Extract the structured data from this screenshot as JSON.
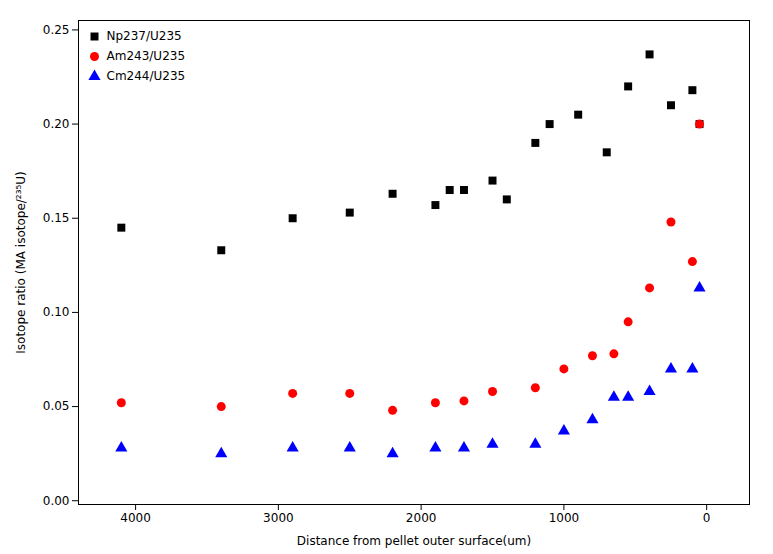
{
  "chart_data": {
    "type": "scatter",
    "xlabel": "Distance from pellet outer surface(um)",
    "ylabel": "Isotope ratio (MA isotope/²³⁵U)",
    "xlim": [
      4400,
      -300
    ],
    "ylim": [
      -0.002,
      0.255
    ],
    "xticks": [
      4000,
      3000,
      2000,
      1000,
      0
    ],
    "yticks": [
      {
        "value": 0,
        "label": "0.00"
      },
      0.05,
      {
        "value": 0.1,
        "label": "0.10"
      },
      0.15,
      {
        "value": 0.2,
        "label": "0.20"
      },
      0.25
    ],
    "legend": "upper left",
    "grid": false,
    "series": [
      {
        "name": "Np237/U235",
        "color": "#000000",
        "marker": "square",
        "x": [
          4100,
          3400,
          2900,
          2500,
          2200,
          1900,
          1800,
          1700,
          1500,
          1400,
          1200,
          1100,
          900,
          700,
          550,
          400,
          250,
          100,
          50
        ],
        "values": [
          0.145,
          0.133,
          0.15,
          0.153,
          0.163,
          0.157,
          0.165,
          0.165,
          0.17,
          0.16,
          0.19,
          0.2,
          0.205,
          0.185,
          0.22,
          0.237,
          0.21,
          0.218,
          0.2
        ]
      },
      {
        "name": "Am243/U235",
        "color": "#ff0000",
        "marker": "circle",
        "x": [
          4100,
          3400,
          2900,
          2500,
          2200,
          1900,
          1700,
          1500,
          1200,
          1000,
          800,
          650,
          550,
          400,
          250,
          100,
          50
        ],
        "values": [
          0.052,
          0.05,
          0.057,
          0.057,
          0.048,
          0.052,
          0.053,
          0.058,
          0.06,
          0.07,
          0.077,
          0.078,
          0.095,
          0.113,
          0.148,
          0.127,
          0.2
        ]
      },
      {
        "name": "Cm244/U235",
        "color": "#0000ff",
        "marker": "triangle",
        "x": [
          4100,
          3400,
          2900,
          2500,
          2200,
          1900,
          1700,
          1500,
          1200,
          1000,
          800,
          650,
          550,
          400,
          250,
          100,
          50
        ],
        "values": [
          0.028,
          0.025,
          0.028,
          0.028,
          0.025,
          0.028,
          0.028,
          0.03,
          0.03,
          0.037,
          0.043,
          0.055,
          0.055,
          0.058,
          0.07,
          0.07,
          0.113
        ]
      }
    ]
  }
}
